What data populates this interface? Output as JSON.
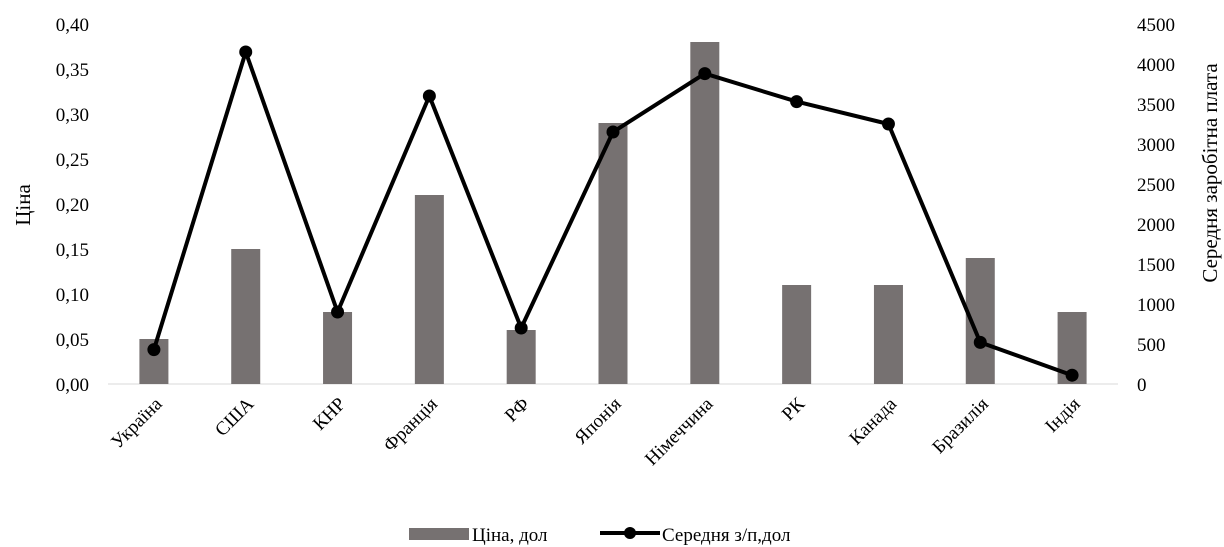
{
  "chart_data": {
    "type": "bar+line",
    "categories": [
      "Україна",
      "США",
      "КНР",
      "Франція",
      "РФ",
      "Японія",
      "Німеччина",
      "РК",
      "Канада",
      "Бразилія",
      "Індія"
    ],
    "series": [
      {
        "name": "Ціна, дол",
        "type": "bar",
        "axis": "left",
        "color": "#767171",
        "values": [
          0.05,
          0.15,
          0.08,
          0.21,
          0.06,
          0.29,
          0.38,
          0.11,
          0.11,
          0.14,
          0.08
        ]
      },
      {
        "name": "Середня з/п,дол",
        "type": "line",
        "axis": "right",
        "color": "#000000",
        "values": [
          430,
          4150,
          900,
          3600,
          700,
          3150,
          3880,
          3530,
          3250,
          520,
          110
        ]
      }
    ],
    "ylabel_left": "Ціна",
    "ylabel_right": "Середня заробітна плата",
    "ylim_left": [
      0,
      0.4
    ],
    "ylim_right": [
      0,
      4500
    ],
    "yticks_left": [
      "0,00",
      "0,05",
      "0,10",
      "0,15",
      "0,20",
      "0,25",
      "0,30",
      "0,35",
      "0,40"
    ],
    "yticks_right": [
      "0",
      "500",
      "1000",
      "1500",
      "2000",
      "2500",
      "3000",
      "3500",
      "4000",
      "4500"
    ],
    "grid": false,
    "legend_position": "bottom"
  }
}
